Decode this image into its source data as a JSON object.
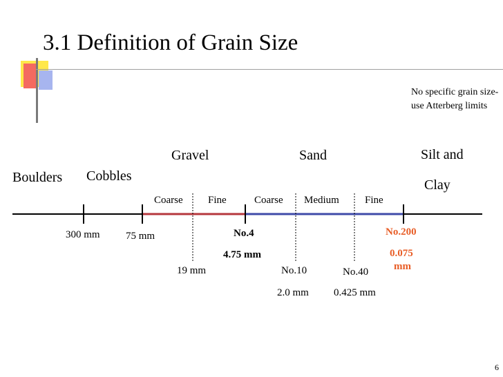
{
  "slide": {
    "title": "3.1 Definition of Grain Size",
    "page_number": "6",
    "note": "No specific grain size-use Atterberg limits"
  },
  "categories": {
    "boulders": "Boulders",
    "cobbles": "Cobbles",
    "gravel": "Gravel",
    "sand": "Sand",
    "silt_clay_line1": "Silt and",
    "silt_clay_line2": "Clay"
  },
  "subdivisions": {
    "gravel_coarse": "Coarse",
    "gravel_fine": "Fine",
    "sand_coarse": "Coarse",
    "sand_medium": "Medium",
    "sand_fine": "Fine"
  },
  "limits": {
    "l300": "300 mm",
    "l75": "75 mm",
    "l19": "19 mm",
    "no4": "No.4",
    "no4_size": "4.75 mm",
    "no10": "No.10",
    "no10_size": "2.0 mm",
    "no40": "No.40",
    "no40_size": "0.425 mm",
    "no200": "No.200",
    "no200_size_line1": "0.075",
    "no200_size_line2": "mm"
  },
  "colors": {
    "gravel_segment": "#b5373c",
    "sand_segment": "#3e4aa8",
    "no200_label": "#e85d26",
    "axis": "#000000"
  }
}
